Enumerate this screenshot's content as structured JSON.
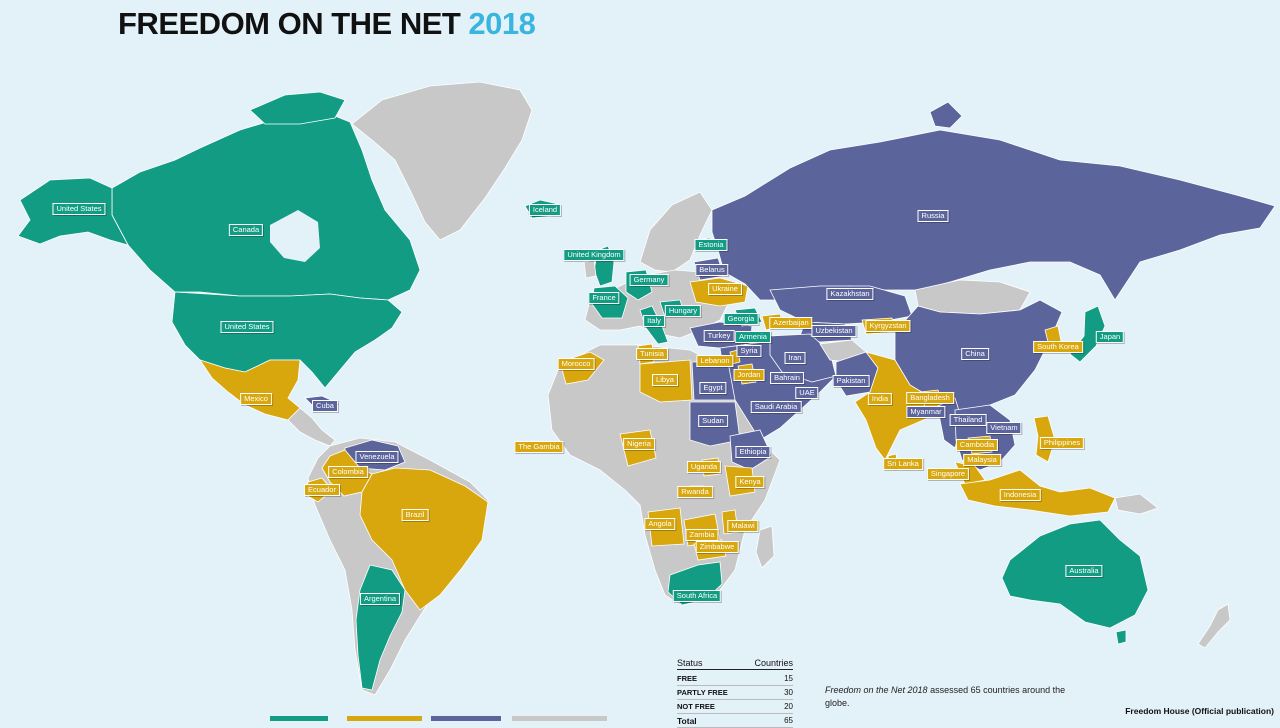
{
  "title": {
    "main": "FREEDOM ON THE NET",
    "year": "2018"
  },
  "colors": {
    "free": "#129c83",
    "partly_free": "#d8a70d",
    "not_free": "#5c649c",
    "not_evaluated": "#c8c8c8",
    "ocean": "#e3f1f9"
  },
  "countries": [
    {
      "name": "United States",
      "status": "free"
    },
    {
      "name": "Canada",
      "status": "free"
    },
    {
      "name": "United States",
      "status": "free"
    },
    {
      "name": "Iceland",
      "status": "free"
    },
    {
      "name": "Estonia",
      "status": "free"
    },
    {
      "name": "United Kingdom",
      "status": "free"
    },
    {
      "name": "Belarus",
      "status": "notfree"
    },
    {
      "name": "Germany",
      "status": "free"
    },
    {
      "name": "Ukraine",
      "status": "partly"
    },
    {
      "name": "France",
      "status": "free"
    },
    {
      "name": "Hungary",
      "status": "free"
    },
    {
      "name": "Georgia",
      "status": "free"
    },
    {
      "name": "Italy",
      "status": "free"
    },
    {
      "name": "Azerbaijan",
      "status": "partly"
    },
    {
      "name": "Armenia",
      "status": "free"
    },
    {
      "name": "Turkey",
      "status": "notfree"
    },
    {
      "name": "Russia",
      "status": "notfree"
    },
    {
      "name": "Kazakhstan",
      "status": "notfree"
    },
    {
      "name": "Kyrgyzstan",
      "status": "partly"
    },
    {
      "name": "Uzbekistan",
      "status": "notfree"
    },
    {
      "name": "China",
      "status": "notfree"
    },
    {
      "name": "South Korea",
      "status": "partly"
    },
    {
      "name": "Japan",
      "status": "free"
    },
    {
      "name": "Tunisia",
      "status": "partly"
    },
    {
      "name": "Syria",
      "status": "notfree"
    },
    {
      "name": "Lebanon",
      "status": "partly"
    },
    {
      "name": "Iran",
      "status": "notfree"
    },
    {
      "name": "Morocco",
      "status": "partly"
    },
    {
      "name": "Jordan",
      "status": "partly"
    },
    {
      "name": "Libya",
      "status": "partly"
    },
    {
      "name": "Egypt",
      "status": "notfree"
    },
    {
      "name": "Bahrain",
      "status": "notfree"
    },
    {
      "name": "Pakistan",
      "status": "notfree"
    },
    {
      "name": "UAE",
      "status": "notfree"
    },
    {
      "name": "Saudi Arabia",
      "status": "notfree"
    },
    {
      "name": "India",
      "status": "partly"
    },
    {
      "name": "Bangladesh",
      "status": "partly"
    },
    {
      "name": "Myanmar",
      "status": "notfree"
    },
    {
      "name": "Thailand",
      "status": "notfree"
    },
    {
      "name": "Vietnam",
      "status": "notfree"
    },
    {
      "name": "Cambodia",
      "status": "partly"
    },
    {
      "name": "Philippines",
      "status": "partly"
    },
    {
      "name": "Malaysia",
      "status": "partly"
    },
    {
      "name": "Sri Lanka",
      "status": "partly"
    },
    {
      "name": "Singapore",
      "status": "partly"
    },
    {
      "name": "Indonesia",
      "status": "partly"
    },
    {
      "name": "Australia",
      "status": "free"
    },
    {
      "name": "Sudan",
      "status": "notfree"
    },
    {
      "name": "The Gambia",
      "status": "partly"
    },
    {
      "name": "Nigeria",
      "status": "partly"
    },
    {
      "name": "Ethiopia",
      "status": "notfree"
    },
    {
      "name": "Uganda",
      "status": "partly"
    },
    {
      "name": "Kenya",
      "status": "partly"
    },
    {
      "name": "Rwanda",
      "status": "partly"
    },
    {
      "name": "Angola",
      "status": "partly"
    },
    {
      "name": "Malawi",
      "status": "partly"
    },
    {
      "name": "Zambia",
      "status": "partly"
    },
    {
      "name": "Zimbabwe",
      "status": "partly"
    },
    {
      "name": "South Africa",
      "status": "free"
    },
    {
      "name": "Mexico",
      "status": "partly"
    },
    {
      "name": "Cuba",
      "status": "notfree"
    },
    {
      "name": "Venezuela",
      "status": "notfree"
    },
    {
      "name": "Colombia",
      "status": "partly"
    },
    {
      "name": "Ecuador",
      "status": "partly"
    },
    {
      "name": "Brazil",
      "status": "partly"
    },
    {
      "name": "Argentina",
      "status": "free"
    }
  ],
  "status_table": {
    "header_status": "Status",
    "header_countries": "Countries",
    "rows": [
      {
        "status": "FREE",
        "count": "15"
      },
      {
        "status": "PARTLY FREE",
        "count": "30"
      },
      {
        "status": "NOT FREE",
        "count": "20"
      },
      {
        "status": "Total",
        "count": "65"
      }
    ]
  },
  "note": {
    "publication": "Freedom on the Net 2018",
    "text": " assessed 65 countries around the globe."
  },
  "credit": "Freedom House (Official publication)"
}
